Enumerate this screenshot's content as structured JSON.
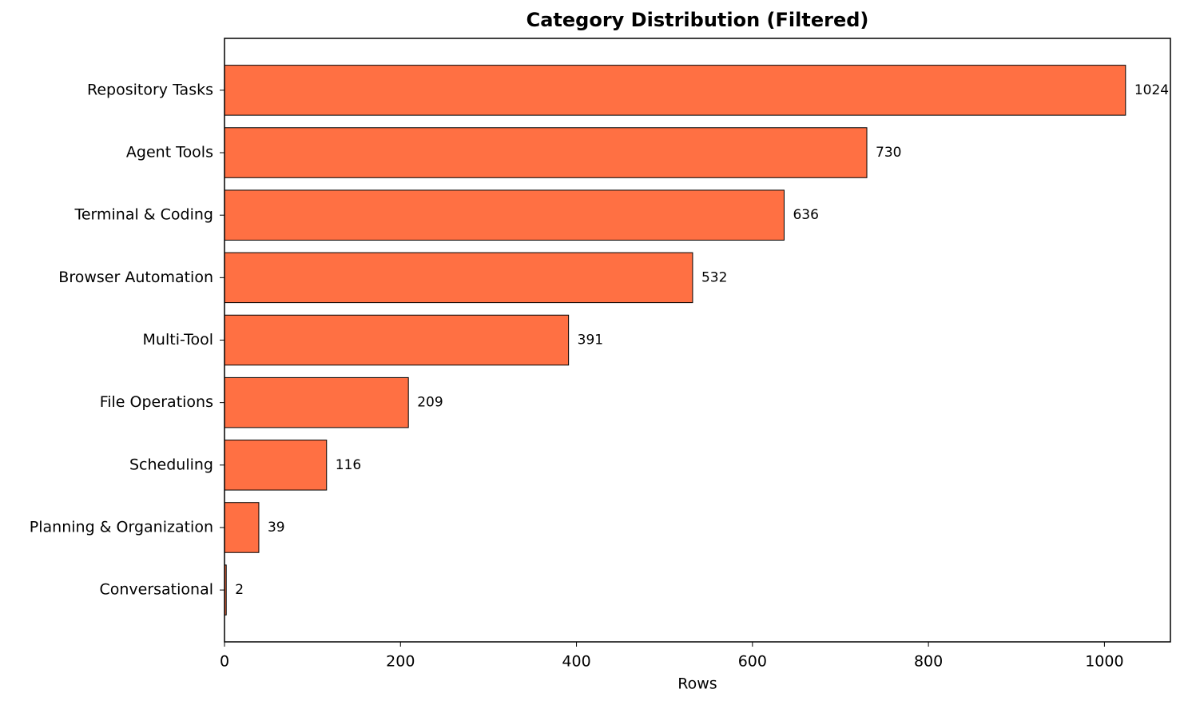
{
  "chart_data": {
    "type": "barh",
    "title": "Category Distribution (Filtered)",
    "x_label": "Rows",
    "categories": [
      "Repository Tasks",
      "Agent Tools",
      "Terminal & Coding",
      "Browser Automation",
      "Multi-Tool",
      "File Operations",
      "Scheduling",
      "Planning & Organization",
      "Conversational"
    ],
    "values": [
      1024,
      730,
      636,
      532,
      391,
      209,
      116,
      39,
      2
    ],
    "color": "#ff7043",
    "xlim": [
      0,
      1075
    ],
    "xticks": [
      0,
      200,
      400,
      600,
      800,
      1000
    ],
    "grid": false
  }
}
